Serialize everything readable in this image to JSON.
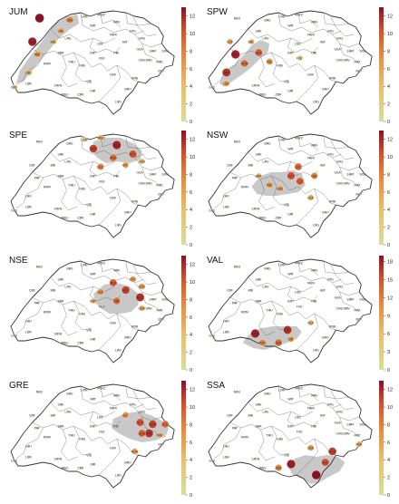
{
  "colors": {
    "low": "#d9dd9a",
    "mid_low": "#e9c06a",
    "mid": "#e6913f",
    "mid_high": "#d2502e",
    "high": "#8e0f26",
    "highlight_region": "#c8c8c8",
    "outline": "#333333"
  },
  "panels": [
    {
      "id": "JUM",
      "title": "JUM",
      "ticks": [
        "0",
        "2",
        "4",
        "6",
        "8",
        "10",
        "12"
      ],
      "max": 13
    },
    {
      "id": "SPW",
      "title": "SPW",
      "ticks": [
        "0",
        "2",
        "4",
        "6",
        "8",
        "10",
        "12"
      ],
      "max": 13
    },
    {
      "id": "SPE",
      "title": "SPE",
      "ticks": [
        "0",
        "2",
        "4",
        "6",
        "8",
        "10",
        "12"
      ],
      "max": 13
    },
    {
      "id": "NSW",
      "title": "NSW",
      "ticks": [
        "0",
        "2",
        "4",
        "6",
        "8",
        "10",
        "12"
      ],
      "max": 13
    },
    {
      "id": "NSE",
      "title": "NSE",
      "ticks": [
        "0",
        "2",
        "4",
        "6",
        "8",
        "10",
        "12"
      ],
      "max": 13
    },
    {
      "id": "VAL",
      "title": "VAL",
      "ticks": [
        "0",
        "3",
        "6",
        "9",
        "12",
        "15",
        "18"
      ],
      "max": 19
    },
    {
      "id": "GRE",
      "title": "GRE",
      "ticks": [
        "0",
        "2",
        "4",
        "6",
        "8",
        "10",
        "12"
      ],
      "max": 13
    },
    {
      "id": "SSA",
      "title": "SSA",
      "ticks": [
        "0",
        "2",
        "4",
        "6",
        "8",
        "10",
        "12"
      ],
      "max": 13
    }
  ],
  "stations": [
    "NEU",
    "LON",
    "MWZ",
    "WIN",
    "SAE",
    "WIT",
    "BAS",
    "CDF",
    "STG",
    "GOS",
    "LAG",
    "MUR",
    "ALT",
    "LUZ",
    "PAY",
    "BER",
    "ENT",
    "GLA",
    "ROM",
    "FLU",
    "BIE",
    "LAU",
    "KAS",
    "THU",
    "SION",
    "VIS",
    "ZER",
    "MAT",
    "ULR",
    "GIR",
    "MGS",
    "LSN",
    "GVE",
    "LUG",
    "OBI",
    "DAV",
    "SAM",
    "SCU",
    "BUF",
    "CHU",
    "ROB",
    "GRO"
  ]
}
